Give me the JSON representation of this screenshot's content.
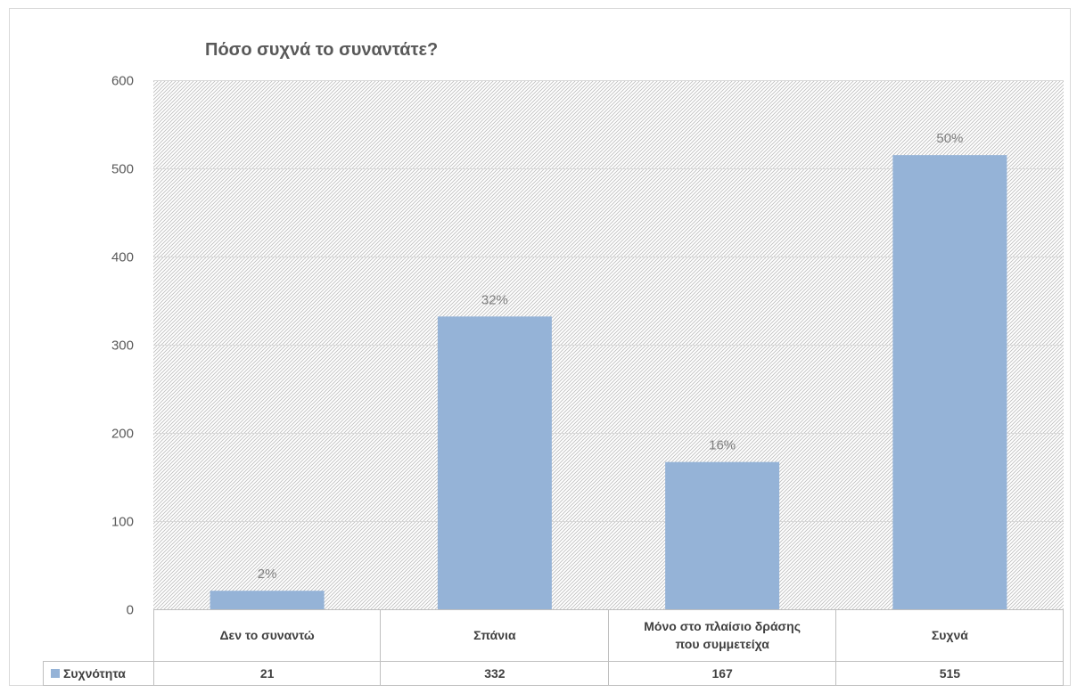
{
  "chart_data": {
    "type": "bar",
    "title": "Πόσο συχνά το συναντάτε?",
    "categories": [
      "Δεν το συναντώ",
      "Σπάνια",
      "Μόνο στο πλαίσιο δράσης που συμμετείχα",
      "Συχνά"
    ],
    "category_lines": [
      [
        "Δεν το συναντώ"
      ],
      [
        "Σπάνια"
      ],
      [
        "Μόνο στο πλαίσιο δράσης",
        "που συμμετείχα"
      ],
      [
        "Συχνά"
      ]
    ],
    "series": [
      {
        "name": "Συχνότητα",
        "values": [
          21,
          332,
          167,
          515
        ],
        "color": "#95b3d7"
      }
    ],
    "data_labels": [
      "2%",
      "32%",
      "16%",
      "50%"
    ],
    "ylim": [
      0,
      600
    ],
    "yticks": [
      0,
      100,
      200,
      300,
      400,
      500,
      600
    ],
    "grid": true,
    "plot_background": "hatched",
    "data_table": true,
    "legend": "data-table-left"
  }
}
